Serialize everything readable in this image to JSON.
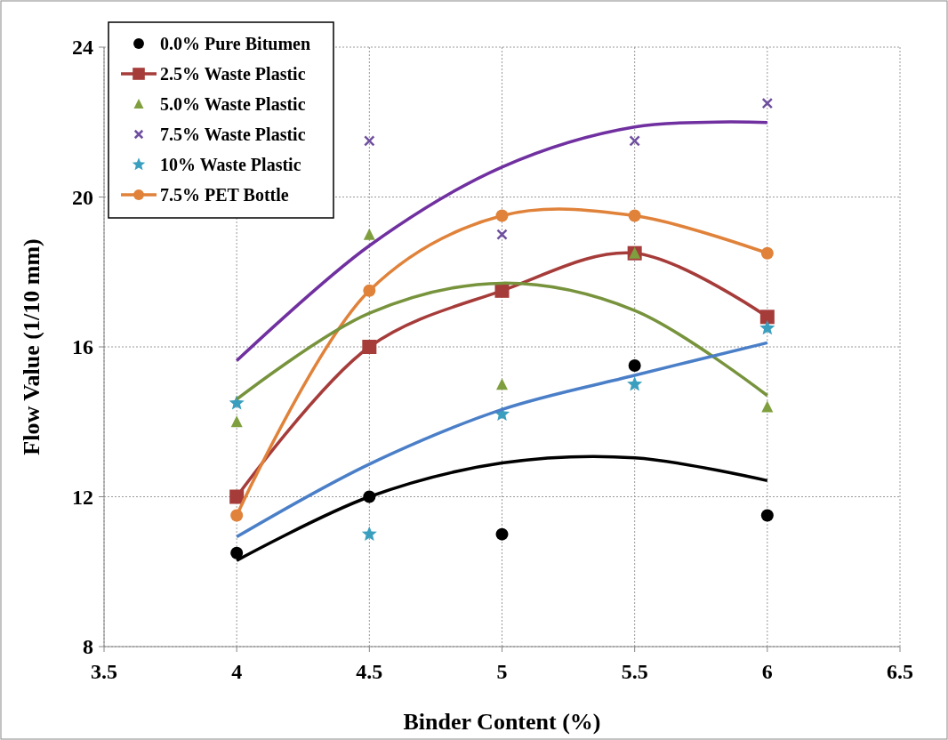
{
  "chart_data": {
    "type": "scatter",
    "xlabel": "Binder Content (%)",
    "ylabel": "Flow Value (1/10 mm)",
    "xlim": [
      3.5,
      6.5
    ],
    "xticks": [
      3.5,
      4,
      4.5,
      5,
      5.5,
      6,
      6.5
    ],
    "ylim": [
      8,
      24
    ],
    "yticks": [
      8,
      12,
      16,
      20,
      24
    ],
    "grid": true,
    "legend": "top left",
    "x": [
      4,
      4.5,
      5,
      5.5,
      6
    ],
    "series": [
      {
        "name": "0.0% Pure Bitumen",
        "type": "scatter",
        "marker": "circle",
        "color": "#000000",
        "values": [
          10.5,
          12,
          11,
          15.5,
          11.5
        ]
      },
      {
        "name": "2.5% Waste Plastic",
        "type": "line",
        "marker": "square",
        "color": "#a63c3a",
        "values": [
          12,
          16,
          17.5,
          18.5,
          16.8
        ]
      },
      {
        "name": "5.0% Waste Plastic",
        "type": "scatter",
        "marker": "triangle",
        "color": "#7f9f3f",
        "values": [
          14,
          19,
          15,
          18.5,
          14.4
        ]
      },
      {
        "name": "7.5% Waste Plastic",
        "type": "scatter",
        "marker": "cross",
        "color": "#6f4f9f",
        "values": [
          null,
          21.5,
          19,
          21.5,
          22.5
        ]
      },
      {
        "name": "10% Waste Plastic",
        "type": "scatter",
        "marker": "star",
        "color": "#3a9fbf",
        "values": [
          14.5,
          11,
          14.2,
          15,
          16.5
        ]
      },
      {
        "name": "7.5% PET Bottle",
        "type": "line",
        "marker": "circle",
        "color": "#e0823a",
        "values": [
          11.5,
          17.5,
          19.5,
          19.5,
          18.5
        ]
      },
      {
        "type": "line",
        "marker": "none",
        "color": "#000000",
        "x": [
          4,
          4.5,
          5,
          5.5,
          6
        ],
        "values": [
          10.3,
          12,
          12.9,
          13.04,
          12.43
        ]
      },
      {
        "type": "line",
        "marker": "none",
        "color": "#77933c",
        "x": [
          4,
          4.5,
          5,
          5.5,
          6
        ],
        "values": [
          14.6,
          16.9,
          17.7,
          16.97,
          14.7
        ]
      },
      {
        "type": "line",
        "marker": "none",
        "color": "#7030a0",
        "x": [
          4,
          4.5,
          5,
          5.5,
          6
        ],
        "values": [
          15.63,
          18.7,
          20.8,
          21.87,
          21.99
        ]
      },
      {
        "type": "line",
        "marker": "none",
        "color": "#4a7fc8",
        "x": [
          4,
          4.5,
          5,
          5.5,
          6
        ],
        "values": [
          10.93,
          12.87,
          14.33,
          15.24,
          16.11
        ]
      }
    ]
  }
}
